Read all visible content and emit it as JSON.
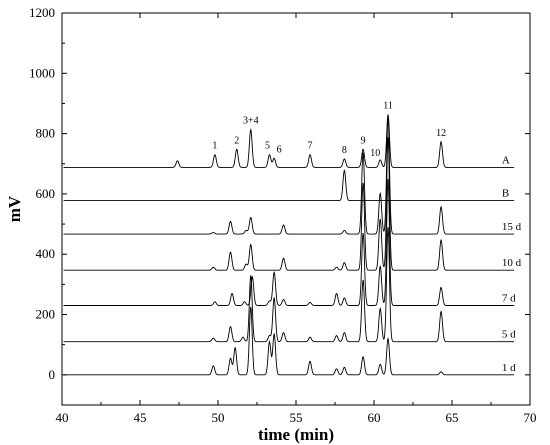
{
  "chart_data": {
    "type": "line",
    "xlabel": "time (min)",
    "ylabel": "mV",
    "xlim": [
      40,
      70
    ],
    "ylim": [
      -100,
      1200
    ],
    "x_ticks": [
      40,
      45,
      50,
      55,
      60,
      65,
      70
    ],
    "y_ticks": [
      0,
      200,
      400,
      600,
      800,
      1000,
      1200
    ],
    "series": [
      {
        "name": "A",
        "baseline": 688,
        "peaks": [
          {
            "x": 47.4,
            "height": 22
          },
          {
            "x": 49.8,
            "height": 42,
            "label": "1"
          },
          {
            "x": 51.2,
            "height": 60,
            "label": "2"
          },
          {
            "x": 52.1,
            "height": 125,
            "label": "3+4"
          },
          {
            "x": 53.3,
            "height": 42,
            "label": "5"
          },
          {
            "x": 53.6,
            "height": 30,
            "label": "6"
          },
          {
            "x": 55.9,
            "height": 42,
            "label": "7"
          },
          {
            "x": 58.1,
            "height": 28,
            "label": "8"
          },
          {
            "x": 59.3,
            "height": 60,
            "label": "9"
          },
          {
            "x": 60.4,
            "height": 25,
            "label": "10"
          },
          {
            "x": 60.9,
            "height": 175,
            "label": "11"
          },
          {
            "x": 64.3,
            "height": 85,
            "label": "12"
          }
        ]
      },
      {
        "name": "B",
        "baseline": 578,
        "peaks": [
          {
            "x": 58.1,
            "height": 100
          }
        ]
      },
      {
        "name": "15 d",
        "baseline": 467,
        "peaks": [
          {
            "x": 49.7,
            "height": 5
          },
          {
            "x": 50.8,
            "height": 42
          },
          {
            "x": 51.8,
            "height": 12
          },
          {
            "x": 52.1,
            "height": 55
          },
          {
            "x": 54.2,
            "height": 30
          },
          {
            "x": 58.1,
            "height": 12
          },
          {
            "x": 59.3,
            "height": 270
          },
          {
            "x": 60.4,
            "height": 135
          },
          {
            "x": 60.9,
            "height": 390
          },
          {
            "x": 64.3,
            "height": 90
          }
        ]
      },
      {
        "name": "10 d",
        "baseline": 347,
        "peaks": [
          {
            "x": 49.7,
            "height": 10
          },
          {
            "x": 50.8,
            "height": 60
          },
          {
            "x": 51.8,
            "height": 20
          },
          {
            "x": 52.1,
            "height": 85
          },
          {
            "x": 54.2,
            "height": 40
          },
          {
            "x": 57.6,
            "height": 10
          },
          {
            "x": 58.1,
            "height": 25
          },
          {
            "x": 59.3,
            "height": 290
          },
          {
            "x": 60.4,
            "height": 170
          },
          {
            "x": 60.9,
            "height": 440
          },
          {
            "x": 64.3,
            "height": 100
          }
        ]
      },
      {
        "name": "7 d",
        "baseline": 230,
        "peaks": [
          {
            "x": 49.8,
            "height": 12
          },
          {
            "x": 50.9,
            "height": 40
          },
          {
            "x": 51.7,
            "height": 12
          },
          {
            "x": 52.2,
            "height": 95
          },
          {
            "x": 53.3,
            "height": 15
          },
          {
            "x": 53.6,
            "height": 110
          },
          {
            "x": 54.2,
            "height": 20
          },
          {
            "x": 55.9,
            "height": 10
          },
          {
            "x": 57.6,
            "height": 40
          },
          {
            "x": 58.1,
            "height": 25
          },
          {
            "x": 59.3,
            "height": 240
          },
          {
            "x": 60.4,
            "height": 130
          },
          {
            "x": 60.9,
            "height": 420
          },
          {
            "x": 64.3,
            "height": 60
          }
        ]
      },
      {
        "name": "5 d",
        "baseline": 110,
        "peaks": [
          {
            "x": 49.7,
            "height": 12
          },
          {
            "x": 50.8,
            "height": 50
          },
          {
            "x": 51.6,
            "height": 15
          },
          {
            "x": 52.1,
            "height": 220
          },
          {
            "x": 53.3,
            "height": 20
          },
          {
            "x": 53.6,
            "height": 145
          },
          {
            "x": 54.2,
            "height": 30
          },
          {
            "x": 55.9,
            "height": 15
          },
          {
            "x": 57.6,
            "height": 20
          },
          {
            "x": 58.1,
            "height": 30
          },
          {
            "x": 59.3,
            "height": 205
          },
          {
            "x": 60.4,
            "height": 110
          },
          {
            "x": 60.9,
            "height": 380
          },
          {
            "x": 64.3,
            "height": 100
          }
        ]
      },
      {
        "name": "1 d",
        "baseline": 0,
        "peaks": [
          {
            "x": 49.7,
            "height": 30
          },
          {
            "x": 50.8,
            "height": 55
          },
          {
            "x": 51.1,
            "height": 90
          },
          {
            "x": 52.1,
            "height": 225
          },
          {
            "x": 53.3,
            "height": 110
          },
          {
            "x": 53.6,
            "height": 135
          },
          {
            "x": 55.9,
            "height": 45
          },
          {
            "x": 57.6,
            "height": 20
          },
          {
            "x": 58.1,
            "height": 25
          },
          {
            "x": 59.3,
            "height": 60
          },
          {
            "x": 60.4,
            "height": 35
          },
          {
            "x": 60.9,
            "height": 120
          },
          {
            "x": 64.3,
            "height": 10
          }
        ]
      }
    ]
  }
}
